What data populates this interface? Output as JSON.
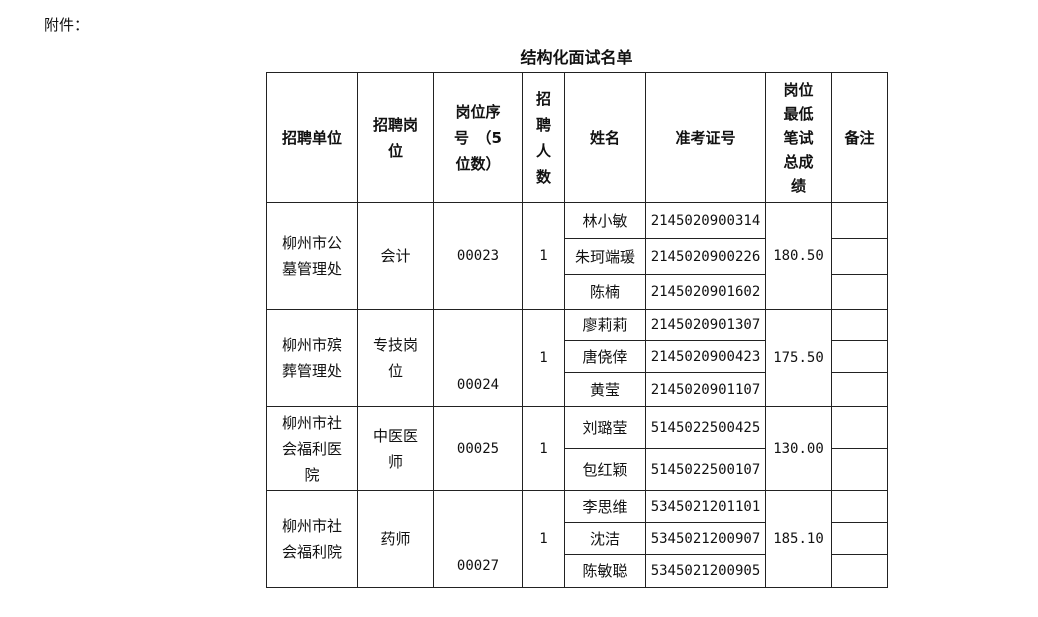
{
  "attachment_label": "附件：",
  "title": "结构化面试名单",
  "headers": [
    "招聘单位",
    "招聘岗\n位",
    "岗位序\n号　（5\n位数）",
    "招\n聘\n人\n数",
    "姓名",
    "准考证号",
    "岗位\n最低\n笔试\n总成\n绩",
    "备注"
  ],
  "groups": [
    {
      "unit": "柳州市公\n墓管理处",
      "post": "会计",
      "code": "00023",
      "count": "1",
      "score": "180.50",
      "people": [
        {
          "name": "林小敏",
          "id": "2145020900314"
        },
        {
          "name": "朱珂端瑗",
          "id": "2145020900226"
        },
        {
          "name": "陈楠",
          "id": "2145020901602"
        }
      ]
    },
    {
      "unit": "柳州市殡\n葬管理处",
      "post": "专技岗\n位",
      "code": "00024",
      "count": "1",
      "score": "175.50",
      "people": [
        {
          "name": "廖莉莉",
          "id": "2145020901307"
        },
        {
          "name": "唐侥倖",
          "id": "2145020900423"
        },
        {
          "name": "黄莹",
          "id": "2145020901107"
        }
      ]
    },
    {
      "unit": "柳州市社\n会福利医\n院",
      "post": "中医医\n师",
      "code": "00025",
      "count": "1",
      "score": "130.00",
      "people": [
        {
          "name": "刘璐莹",
          "id": "5145022500425"
        },
        {
          "name": "包红颖",
          "id": "5145022500107"
        }
      ]
    },
    {
      "unit": "柳州市社\n会福利院",
      "post": "药师",
      "code": "00027",
      "count": "1",
      "score": "185.10",
      "people": [
        {
          "name": "李思维",
          "id": "5345021201101"
        },
        {
          "name": "沈洁",
          "id": "5345021200907"
        },
        {
          "name": "陈敏聪",
          "id": "5345021200905"
        }
      ]
    }
  ]
}
